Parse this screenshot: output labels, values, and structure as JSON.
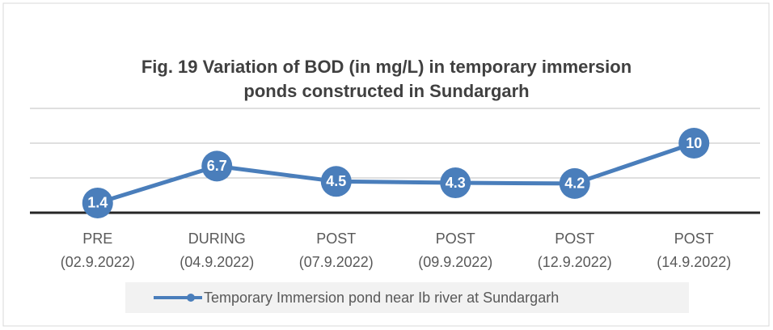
{
  "chart_data": {
    "type": "line",
    "title": [
      "Fig. 19    Variation of BOD (in mg/L) in temporary immersion",
      "ponds constructed in Sundargarh"
    ],
    "categories": [
      [
        "PRE",
        "(02.9.2022)"
      ],
      [
        "DURING",
        "(04.9.2022)"
      ],
      [
        "POST",
        "(07.9.2022)"
      ],
      [
        "POST",
        "(09.9.2022)"
      ],
      [
        "POST",
        "(12.9.2022)"
      ],
      [
        "POST",
        "(14.9.2022)"
      ]
    ],
    "series": [
      {
        "name": "Temporary Immersion pond near Ib river at Sundargarh",
        "color": "#4a7ebb",
        "values": [
          1.4,
          6.7,
          4.5,
          4.3,
          4.2,
          10
        ]
      }
    ],
    "ylim": [
      0,
      15
    ],
    "yticks": [
      0,
      5,
      10,
      15
    ],
    "grid": true,
    "legend": "bottom"
  }
}
